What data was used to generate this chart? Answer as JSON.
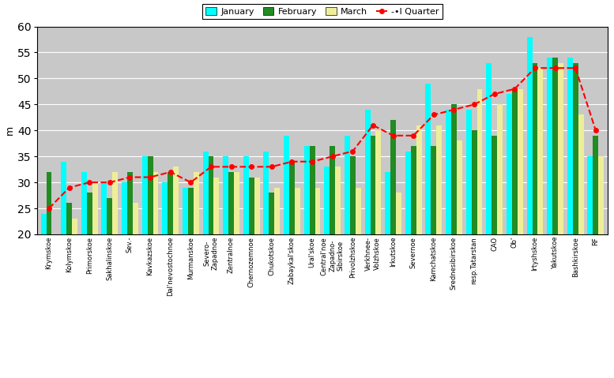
{
  "categories": [
    "Krymskoe",
    "Kolymskoe",
    "Primorskoe",
    "Sakhalinskoe",
    "Sev.-",
    "Kavkazskoe",
    "Dal'nevostochnoe",
    "Murmanskoe",
    "Severo-\nZapadnoe",
    "Zentralnoe",
    "Chernozemnoe",
    "Chukotskoe",
    "Zabaykal'skoe",
    "Ural'skoe",
    "Central'noe\nZapadno-\nSibirskoe",
    "Privolzhskoe",
    "Verkhnee-\nVolzhskoe",
    "Irkutskoe",
    "Severnoe",
    "Kamchatskoe",
    "Srednesibirskoe",
    "resp.Tatarstan",
    "CAO",
    "Ob'",
    "Irtyshskoe",
    "Yakutskoe",
    "Bashkirskoe",
    "RF"
  ],
  "january": [
    24,
    34,
    32,
    30,
    30,
    35,
    30,
    29,
    36,
    35,
    35,
    36,
    39,
    37,
    33,
    39,
    44,
    32,
    36,
    49,
    44,
    44,
    53,
    47,
    58,
    54,
    54,
    35
  ],
  "february": [
    32,
    26,
    28,
    27,
    32,
    35,
    32,
    29,
    35,
    32,
    31,
    28,
    34,
    37,
    37,
    35,
    39,
    42,
    37,
    37,
    45,
    40,
    39,
    48,
    53,
    54,
    53,
    39
  ],
  "march": [
    18,
    23,
    30,
    32,
    26,
    32,
    33,
    32,
    31,
    32,
    31,
    29,
    29,
    29,
    33,
    29,
    40,
    28,
    41,
    41,
    38,
    48,
    45,
    48,
    52,
    53,
    43,
    35
  ],
  "quarter": [
    25,
    29,
    30,
    30,
    31,
    31,
    32,
    30,
    33,
    33,
    33,
    33,
    34,
    34,
    35,
    36,
    41,
    39,
    39,
    43,
    44,
    45,
    47,
    48,
    52,
    52,
    52,
    40
  ],
  "bar_color_jan": "#00FFFF",
  "bar_color_feb": "#228B22",
  "bar_color_mar": "#EEEE99",
  "line_color": "#FF0000",
  "bg_color": "#C8C8C8",
  "ylim_min": 20,
  "ylim_max": 60,
  "yticks": [
    20,
    25,
    30,
    35,
    40,
    45,
    50,
    55,
    60
  ],
  "ylabel": "m",
  "tick_labels": [
    "Krymskoe",
    "Kolymskoe",
    "Primorskoe",
    "Sakhalinskoe",
    "Sev.-",
    "Kavkazskoe",
    "Dal'nevostochnoe",
    "Murmanskoe",
    "Severo-\nZapadnoe",
    "Zentralnoe",
    "Chernozemnoe",
    "Chukotskoe",
    "Zabaykal'skoe",
    "Ural'skoe",
    "Central'noe\nZapadno-\nSibirskoe",
    "Privolzhskoe",
    "Verkhnee-\nVolzhskoe",
    "Irkutskoe",
    "Severnoe",
    "Kamchatskoe",
    "Srednesibirskoe",
    "resp.Tatarstan",
    "CAO",
    "Ob'",
    "Irtyshskoe",
    "Yakutskoe",
    "Bashkirskoe",
    "RF"
  ]
}
